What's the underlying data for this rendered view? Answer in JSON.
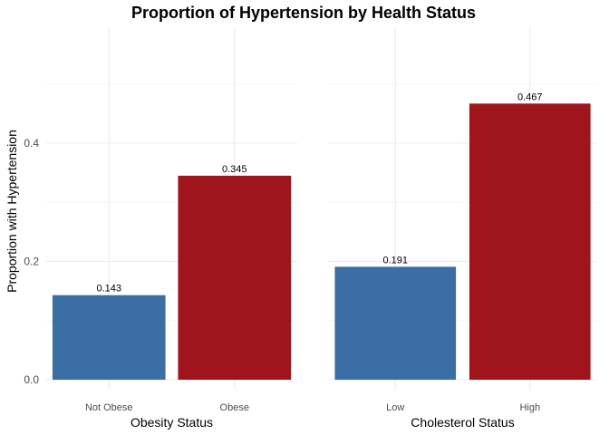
{
  "title": "Proportion of Hypertension by Health Status",
  "ylabel": "Proportion with Hypertension",
  "colors": {
    "low": "#3a6ea5",
    "high": "#a0141c"
  },
  "chart_data": [
    {
      "type": "bar",
      "xlabel": "Obesity Status",
      "ylabel": "Proportion with Hypertension",
      "categories": [
        "Not Obese",
        "Obese"
      ],
      "values": [
        0.143,
        0.345
      ],
      "data_labels": [
        "0.143",
        "0.345"
      ],
      "ylim": [
        0,
        0.5
      ],
      "yticks": [
        0.0,
        0.2,
        0.4
      ],
      "ytick_labels": [
        "0.0",
        "0.2",
        "0.4"
      ],
      "grid": true
    },
    {
      "type": "bar",
      "xlabel": "Cholesterol Status",
      "ylabel": "Proportion with Hypertension",
      "categories": [
        "Low",
        "High"
      ],
      "values": [
        0.191,
        0.467
      ],
      "data_labels": [
        "0.191",
        "0.467"
      ],
      "ylim": [
        0,
        0.5
      ],
      "yticks": [
        0.0,
        0.2,
        0.4
      ],
      "ytick_labels": [
        "0.0",
        "0.2",
        "0.4"
      ],
      "grid": true
    }
  ]
}
